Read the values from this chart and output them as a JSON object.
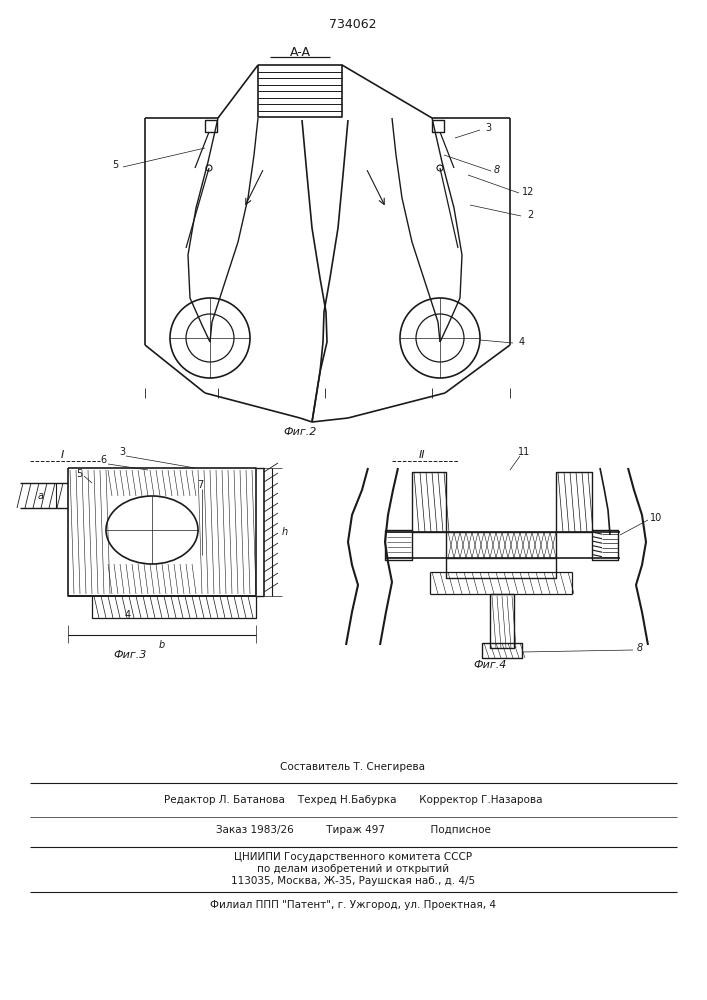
{
  "patent_number": "734062",
  "background_color": "#ffffff",
  "line_color": "#1a1a1a",
  "fig2_label": "Фиг.2",
  "fig3_label": "Фиг.3",
  "fig4_label": "Фиг.4",
  "section_aa": "A-A",
  "section_i": "I",
  "section_ii": "II",
  "footer_line1": "Составитель Т. Снегирева",
  "footer_line2": "Редактор Л. Батанова    Техред Н.Бабурка       Корректор Г.Назарова",
  "footer_line3": "Заказ 1983/26          Тираж 497              Подписное",
  "footer_line4": "ЦНИИПИ Государственного комитета СССР",
  "footer_line5": "по делам изобретений и открытий",
  "footer_line6": "113035, Москва, Ж-35, Раушская наб., д. 4/5",
  "footer_line7": "Филиал ППП \"Патент\", г. Ужгород, ул. Проектная, 4"
}
